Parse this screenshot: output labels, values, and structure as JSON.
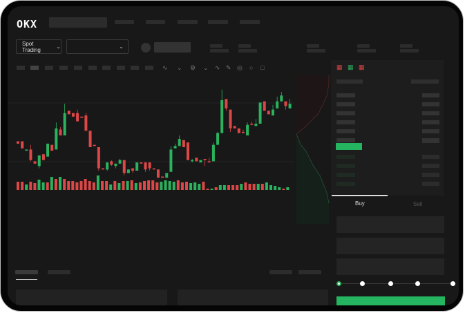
{
  "header": {
    "logo": "OKX"
  },
  "toolbar": {
    "market_type": "Spot Trading",
    "chevron": "chevron-down-icon"
  },
  "trade": {
    "buy_label": "Buy",
    "sell_label": "Sell",
    "active_tab": "Buy",
    "leverage_slider_value": 0
  },
  "colors": {
    "up": "#2bb25e",
    "down": "#dd4748",
    "background": "#181818",
    "accent_button": "#25b560"
  },
  "chart_data": {
    "type": "candlestick",
    "candles": [
      [
        45,
        45,
        43,
        43
      ],
      [
        45,
        45,
        39,
        39
      ],
      [
        37,
        38,
        37,
        38
      ],
      [
        38,
        42,
        28,
        29
      ],
      [
        28,
        28,
        26,
        26
      ],
      [
        24,
        33,
        22,
        33
      ],
      [
        34,
        34,
        29,
        29
      ],
      [
        32,
        43,
        32,
        43
      ],
      [
        42,
        42,
        37,
        37
      ],
      [
        38,
        61,
        38,
        56
      ],
      [
        55,
        57,
        50,
        50
      ],
      [
        50,
        77,
        50,
        69
      ],
      [
        71,
        71,
        68,
        68
      ],
      [
        69,
        69,
        66,
        66
      ],
      [
        69,
        72,
        62,
        62
      ],
      [
        66,
        66,
        65,
        65
      ],
      [
        67,
        69,
        54,
        54
      ],
      [
        54,
        54,
        40,
        40
      ],
      [
        42,
        42,
        41,
        41
      ],
      [
        40,
        40,
        20,
        22
      ],
      [
        22,
        22,
        21,
        21
      ],
      [
        21,
        27,
        20,
        27
      ],
      [
        28,
        29,
        24,
        25
      ],
      [
        24,
        26,
        22,
        26
      ],
      [
        26,
        30,
        26,
        29
      ],
      [
        29,
        29,
        16,
        18
      ],
      [
        18,
        21,
        18,
        21
      ],
      [
        22,
        22,
        18,
        20
      ],
      [
        20,
        27,
        20,
        27
      ],
      [
        27,
        27,
        26,
        26
      ],
      [
        27,
        27,
        19,
        21
      ],
      [
        27,
        27,
        20,
        22
      ],
      [
        22,
        22,
        21,
        21
      ],
      [
        21,
        21,
        14,
        14
      ],
      [
        15,
        15,
        14,
        14
      ],
      [
        14,
        18,
        14,
        18
      ],
      [
        19,
        41,
        19,
        38
      ],
      [
        39,
        43,
        39,
        41
      ],
      [
        41,
        50,
        41,
        47
      ],
      [
        46,
        46,
        40,
        40
      ],
      [
        44,
        44,
        29,
        29
      ],
      [
        28,
        30,
        27,
        29
      ],
      [
        31,
        31,
        28,
        28
      ],
      [
        27,
        29,
        27,
        29
      ],
      [
        30,
        30,
        24,
        29
      ],
      [
        28,
        31,
        27,
        27
      ],
      [
        28,
        44,
        28,
        42
      ],
      [
        42,
        53,
        42,
        52
      ],
      [
        52,
        89,
        52,
        80
      ],
      [
        81,
        81,
        71,
        73
      ],
      [
        72,
        72,
        53,
        56
      ],
      [
        58,
        58,
        56,
        56
      ],
      [
        56,
        56,
        52,
        52
      ],
      [
        53,
        55,
        52,
        52
      ],
      [
        50,
        61,
        50,
        59
      ],
      [
        60,
        62,
        59,
        59
      ],
      [
        58,
        64,
        58,
        60
      ],
      [
        60,
        78,
        60,
        78
      ],
      [
        79,
        79,
        71,
        71
      ],
      [
        71,
        71,
        68,
        68
      ],
      [
        67,
        76,
        67,
        72
      ],
      [
        73,
        83,
        73,
        79
      ],
      [
        79,
        87,
        79,
        84
      ],
      [
        79,
        79,
        72,
        75
      ],
      [
        73,
        81,
        73,
        77
      ]
    ],
    "candle_format": [
      "open",
      "high",
      "low",
      "close"
    ],
    "volume": [
      12,
      12,
      8,
      12,
      10,
      15,
      11,
      11,
      19,
      16,
      19,
      16,
      13,
      13,
      11,
      13,
      16,
      13,
      11,
      21,
      13,
      13,
      8,
      13,
      10,
      13,
      13,
      14,
      10,
      11,
      13,
      14,
      14,
      11,
      12,
      14,
      13,
      12,
      14,
      11,
      12,
      10,
      11,
      9,
      12,
      2,
      2,
      4,
      7,
      7,
      7,
      7,
      7,
      9,
      11,
      9,
      9,
      9,
      9,
      11,
      7,
      6,
      4,
      2,
      4
    ],
    "volume_up": [
      0,
      0,
      1,
      0,
      0,
      1,
      1,
      0,
      1,
      0,
      1,
      0,
      0,
      0,
      0,
      0,
      0,
      0,
      0,
      1,
      0,
      0,
      1,
      0,
      1,
      0,
      1,
      0,
      1,
      0,
      0,
      0,
      0,
      0,
      1,
      1,
      1,
      1,
      0,
      0,
      0,
      1,
      1,
      1,
      0,
      0,
      1,
      0,
      1,
      1,
      0,
      0,
      0,
      1,
      0,
      0,
      0,
      1,
      0,
      1,
      1,
      1,
      1,
      0,
      1
    ],
    "grid": true
  }
}
